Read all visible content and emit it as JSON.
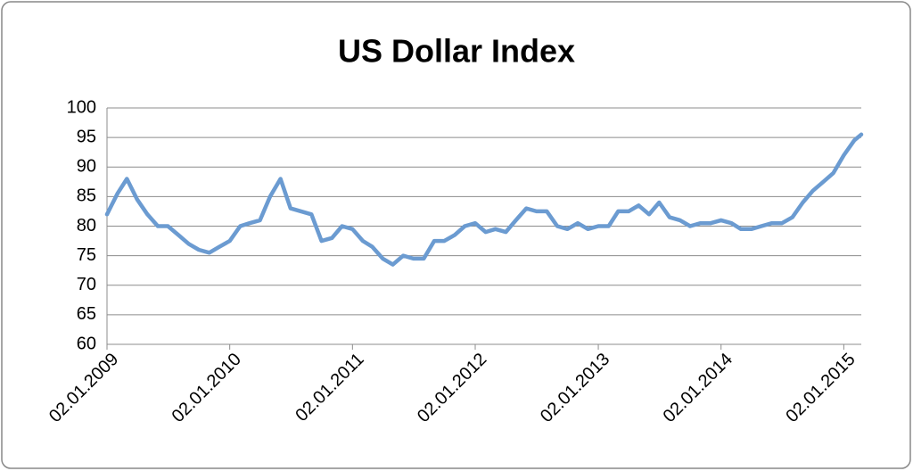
{
  "chart_data": {
    "type": "line",
    "title": "US Dollar Index",
    "x": [
      "02.01.2009",
      "02.02.2009",
      "02.03.2009",
      "02.04.2009",
      "02.05.2009",
      "02.06.2009",
      "02.07.2009",
      "02.08.2009",
      "02.09.2009",
      "02.10.2009",
      "02.11.2009",
      "02.12.2009",
      "02.01.2010",
      "02.02.2010",
      "02.03.2010",
      "02.04.2010",
      "02.05.2010",
      "02.06.2010",
      "02.07.2010",
      "02.08.2010",
      "02.09.2010",
      "02.10.2010",
      "02.11.2010",
      "02.12.2010",
      "02.01.2011",
      "02.02.2011",
      "02.03.2011",
      "02.04.2011",
      "02.05.2011",
      "02.06.2011",
      "02.07.2011",
      "02.08.2011",
      "02.09.2011",
      "02.10.2011",
      "02.11.2011",
      "02.12.2011",
      "02.01.2012",
      "02.02.2012",
      "02.03.2012",
      "02.04.2012",
      "02.05.2012",
      "02.06.2012",
      "02.07.2012",
      "02.08.2012",
      "02.09.2012",
      "02.10.2012",
      "02.11.2012",
      "02.12.2012",
      "02.01.2013",
      "02.02.2013",
      "02.03.2013",
      "02.04.2013",
      "02.05.2013",
      "02.06.2013",
      "02.07.2013",
      "02.08.2013",
      "02.09.2013",
      "02.10.2013",
      "02.11.2013",
      "02.12.2013",
      "02.01.2014",
      "02.02.2014",
      "02.03.2014",
      "02.04.2014",
      "02.05.2014",
      "02.06.2014",
      "02.07.2014",
      "02.08.2014",
      "02.09.2014",
      "02.10.2014",
      "02.11.2014",
      "02.12.2014",
      "02.01.2015",
      "02.02.2015",
      "23.02.2015"
    ],
    "series": [
      {
        "name": "US Dollar Index",
        "color": "#6b9bd1",
        "values": [
          82,
          85.5,
          88,
          84.5,
          82,
          80,
          80,
          78.5,
          77,
          76,
          75.5,
          76.5,
          77.5,
          80,
          80.5,
          81,
          85,
          88,
          83,
          82.5,
          82,
          77.5,
          78,
          80,
          79.5,
          77.5,
          76.5,
          74.5,
          73.5,
          75,
          74.5,
          74.5,
          77.5,
          77.5,
          78.5,
          80,
          80.5,
          79,
          79.5,
          79,
          81,
          83,
          82.5,
          82.5,
          80,
          79.5,
          80.5,
          79.5,
          80,
          80,
          82.5,
          82.5,
          83.5,
          82,
          84,
          81.5,
          81,
          80,
          80.5,
          80.5,
          81,
          80.5,
          79.5,
          79.5,
          80,
          80.5,
          80.5,
          81.5,
          84,
          86,
          87.5,
          89,
          92,
          94.5,
          95.5
        ]
      }
    ],
    "xlim": [
      "02.01.2009",
      "23.02.2015"
    ],
    "xticks": [
      "02.01.2009",
      "02.01.2010",
      "02.01.2011",
      "02.01.2012",
      "02.01.2013",
      "02.01.2014",
      "02.01.2015"
    ],
    "ylim": [
      60,
      100
    ],
    "yticks": [
      60,
      65,
      70,
      75,
      80,
      85,
      90,
      95,
      100
    ],
    "grid": true
  }
}
